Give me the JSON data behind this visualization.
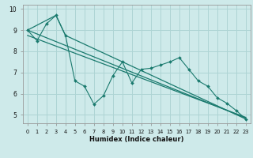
{
  "xlabel": "Humidex (Indice chaleur)",
  "ylabel": "",
  "bg_color": "#ceeaea",
  "grid_color": "#aed4d4",
  "line_color": "#1a7a6e",
  "xlim": [
    -0.5,
    23.5
  ],
  "ylim": [
    4.6,
    10.2
  ],
  "yticks": [
    5,
    6,
    7,
    8,
    9,
    10
  ],
  "xticks": [
    0,
    1,
    2,
    3,
    4,
    5,
    6,
    7,
    8,
    9,
    10,
    11,
    12,
    13,
    14,
    15,
    16,
    17,
    18,
    19,
    20,
    21,
    22,
    23
  ],
  "zigzag_x": [
    0,
    1,
    2,
    3,
    4,
    5,
    6,
    7,
    8,
    9,
    10,
    11,
    12,
    13,
    14,
    15,
    16,
    17,
    18,
    19,
    20,
    21,
    22,
    23
  ],
  "zigzag_y": [
    9.0,
    8.5,
    9.3,
    9.7,
    8.75,
    6.6,
    6.35,
    5.5,
    5.9,
    6.85,
    7.5,
    6.5,
    7.15,
    7.2,
    7.35,
    7.5,
    7.7,
    7.15,
    6.6,
    6.35,
    5.8,
    5.55,
    5.2,
    4.8
  ],
  "line1_x": [
    0,
    23
  ],
  "line1_y": [
    9.0,
    4.85
  ],
  "line2_x": [
    0,
    23
  ],
  "line2_y": [
    8.75,
    4.88
  ],
  "line3_x": [
    0,
    3,
    4,
    23
  ],
  "line3_y": [
    9.0,
    9.7,
    8.75,
    4.8
  ]
}
